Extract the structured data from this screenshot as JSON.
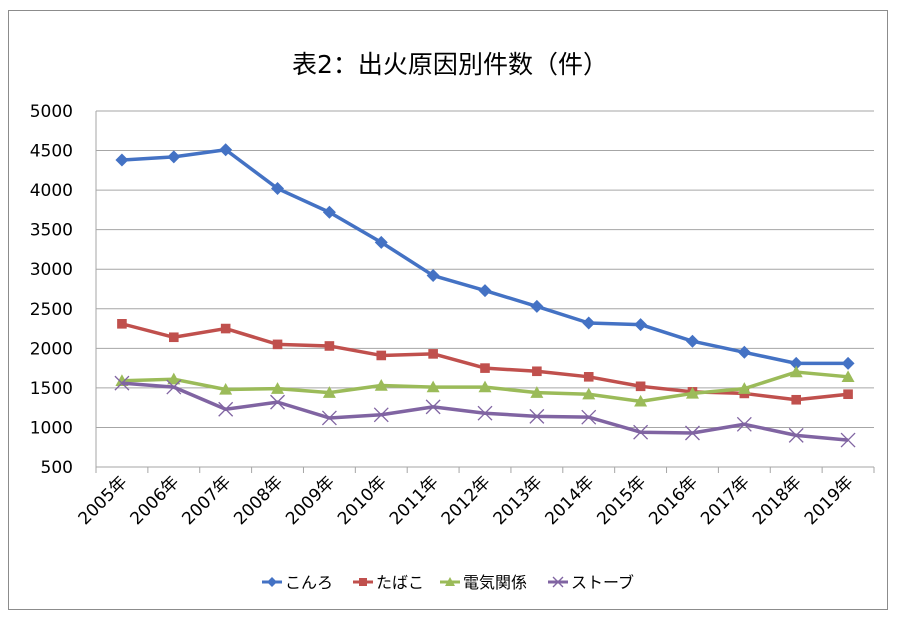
{
  "chart_data": {
    "type": "line",
    "title": "表2：出火原因別件数（件）",
    "xlabel": "",
    "ylabel": "",
    "ylim": [
      500,
      5000
    ],
    "yticks": [
      "500",
      "1000",
      "1500",
      "2000",
      "2500",
      "3000",
      "3500",
      "4000",
      "4500",
      "5000"
    ],
    "ytick_values": [
      500,
      1000,
      1500,
      2000,
      2500,
      3000,
      3500,
      4000,
      4500,
      5000
    ],
    "grid": true,
    "legend_position": "bottom",
    "categories": [
      "2005年",
      "2006年",
      "2007年",
      "2008年",
      "2009年",
      "2010年",
      "2011年",
      "2012年",
      "2013年",
      "2014年",
      "2015年",
      "2016年",
      "2017年",
      "2018年",
      "2019年"
    ],
    "series": [
      {
        "name": "こんろ",
        "color": "#4472c4",
        "marker": "diamond",
        "values": [
          4380,
          4420,
          4510,
          4020,
          3720,
          3340,
          2920,
          2730,
          2530,
          2320,
          2300,
          2090,
          1950,
          1810,
          1810
        ]
      },
      {
        "name": "たばこ",
        "color": "#c0504d",
        "marker": "square",
        "values": [
          2310,
          2140,
          2250,
          2050,
          2030,
          1910,
          1930,
          1750,
          1710,
          1640,
          1520,
          1450,
          1430,
          1350,
          1420
        ]
      },
      {
        "name": "電気関係",
        "color": "#9bbb59",
        "marker": "triangle",
        "values": [
          1590,
          1610,
          1480,
          1490,
          1440,
          1530,
          1510,
          1510,
          1440,
          1420,
          1330,
          1430,
          1490,
          1700,
          1640
        ]
      },
      {
        "name": "ストーブ",
        "color": "#8064a2",
        "marker": "x",
        "values": [
          1560,
          1510,
          1230,
          1320,
          1120,
          1160,
          1260,
          1180,
          1140,
          1130,
          940,
          930,
          1040,
          900,
          840
        ]
      }
    ],
    "gridline_color": "#a6a6a6",
    "border_color": "#8c8c8c"
  }
}
